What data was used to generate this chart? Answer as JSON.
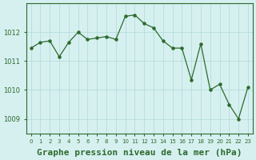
{
  "x": [
    0,
    1,
    2,
    3,
    4,
    5,
    6,
    7,
    8,
    9,
    10,
    11,
    12,
    13,
    14,
    15,
    16,
    17,
    18,
    19,
    20,
    21,
    22,
    23
  ],
  "y": [
    1011.45,
    1011.65,
    1011.7,
    1011.15,
    1011.65,
    1012.0,
    1011.75,
    1011.8,
    1011.85,
    1011.75,
    1012.55,
    1012.6,
    1012.3,
    1012.15,
    1011.7,
    1011.45,
    1011.45,
    1010.35,
    1011.6,
    1010.0,
    1010.2,
    1009.5,
    1009.0,
    1010.1
  ],
  "line_color": "#2d6a2d",
  "marker_color": "#2d6a2d",
  "bg_color": "#d6f0f0",
  "plot_bg_color": "#d6f0f0",
  "grid_color": "#b0d8d8",
  "title": "Graphe pression niveau de la mer (hPa)",
  "title_color": "#2d6a2d",
  "title_fontsize": 8,
  "ylabel_ticks": [
    1009,
    1010,
    1011,
    1012
  ],
  "ylim": [
    1008.5,
    1013.0
  ],
  "xlim": [
    -0.5,
    23.5
  ],
  "xtick_labels": [
    "0",
    "1",
    "2",
    "3",
    "4",
    "5",
    "6",
    "7",
    "8",
    "9",
    "10",
    "11",
    "12",
    "13",
    "14",
    "15",
    "16",
    "17",
    "18",
    "19",
    "20",
    "21",
    "22",
    "23"
  ],
  "outer_border_color": "#2d6a2d",
  "tick_color": "#2d6a2d"
}
